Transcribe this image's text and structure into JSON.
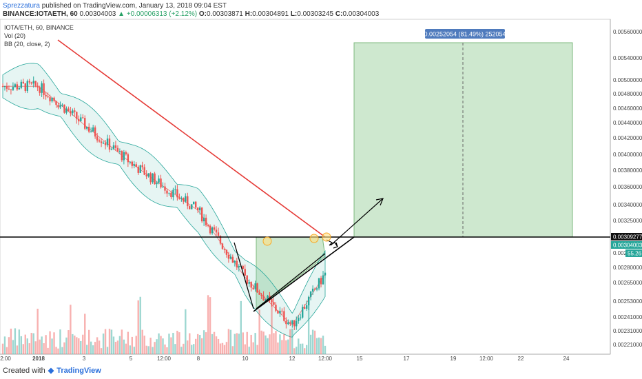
{
  "header": {
    "author": "Sprezzatura",
    "published_text": "published on TradingView.com, January 13, 2018 09:04 EST",
    "symbol": "BINANCE:IOTAETH, 60",
    "last": "0.00304003",
    "change": "+0.00006313 (+2.12%)",
    "o_label": "O:",
    "o": "0.00303871",
    "h_label": "H:",
    "h": "0.00304891",
    "l_label": "L:",
    "l": "0.00303245",
    "c_label": "C:",
    "c": "0.00304003"
  },
  "legend": {
    "pair": "IOTA/ETH, 60, BINANCE",
    "vol": "Vol (20)",
    "bb": "BB (20, close, 2)"
  },
  "measure_label": "0.00252054 (81.49%) 252054",
  "price_tags": {
    "resistance": "0.00309277",
    "current": "0.00304003",
    "partial": "0.0029",
    "vol_value": "55.26"
  },
  "footer": {
    "created_with": "Created with",
    "brand": "TradingView"
  },
  "colors": {
    "up": "#26a69a",
    "down": "#ef5350",
    "trendline": "#e53935",
    "zone": "#a5d6a7",
    "band": "#80cbc4",
    "axis_bg": "#ffffff"
  },
  "chart_data": {
    "type": "candlestick",
    "y_ticks": [
      "0.00560000",
      "0.00540000",
      "0.00500000",
      "0.00480000",
      "0.00460000",
      "0.00440000",
      "0.00420000",
      "0.00400000",
      "0.00380000",
      "0.00360000",
      "0.00340000",
      "0.00325000",
      "0.00280000",
      "0.00265000",
      "0.00253000",
      "0.00241000",
      "0.00231000",
      "0.00221000"
    ],
    "x_ticks": [
      "2:00",
      "2018",
      "3",
      "5",
      "12:00",
      "8",
      "10",
      "12",
      "12:00",
      "15",
      "17",
      "19",
      "12:00",
      "22",
      "24"
    ],
    "ylim": [
      0.0022,
      0.0057
    ],
    "series": [
      {
        "name": "IOTA/ETH",
        "x": [
          "start",
          "2018",
          "3",
          "5",
          "12:00",
          "8",
          "10",
          "12",
          "12:00"
        ],
        "close": [
          0.005,
          0.005,
          0.0046,
          0.0042,
          0.00395,
          0.0037,
          0.003,
          0.0025,
          0.00304003
        ]
      }
    ]
  }
}
